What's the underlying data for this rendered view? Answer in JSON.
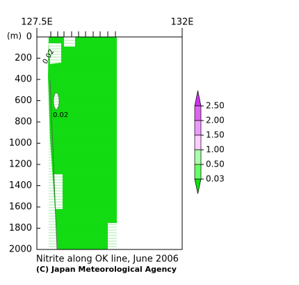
{
  "chart_data": {
    "type": "section",
    "title": "Nitrite along OK line, June 2006",
    "credit": "(C) Japan Meteorological Agency",
    "y_label": "(m)",
    "xlim": [
      127.5,
      132
    ],
    "xticks": [
      {
        "value": 127.5,
        "label": "127.5E"
      },
      {
        "value": 132,
        "label": "132E"
      }
    ],
    "ylim": [
      0,
      2000
    ],
    "yticks": [
      0,
      200,
      400,
      600,
      800,
      1000,
      1200,
      1400,
      1600,
      1800,
      2000
    ],
    "contour_labels": [
      "0.02",
      "0.02"
    ],
    "colorbar": {
      "levels": [
        {
          "value": 2.5,
          "label": "2.50"
        },
        {
          "value": 2.0,
          "label": "2.00"
        },
        {
          "value": 1.5,
          "label": "1.50"
        },
        {
          "value": 1.0,
          "label": "1.00"
        },
        {
          "value": 0.5,
          "label": "0.50"
        },
        {
          "value": 0.03,
          "label": "0.03"
        }
      ],
      "colors": [
        "#cc33ee",
        "#dd66ee",
        "#ee99ff",
        "#ffccff",
        "#aaffaa",
        "#66ff66",
        "#11dd11"
      ]
    }
  }
}
